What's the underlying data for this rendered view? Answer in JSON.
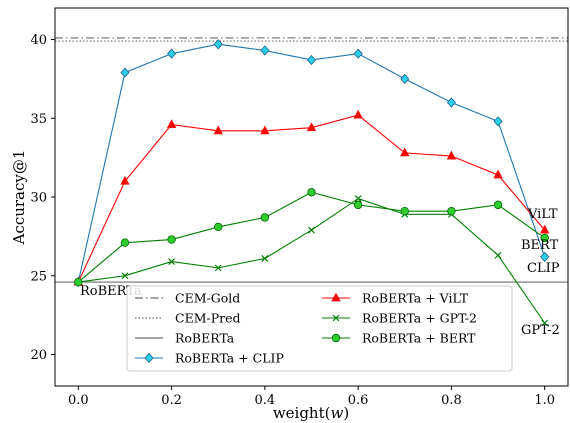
{
  "chart_data": {
    "type": "line",
    "xlabel": "weight(w)",
    "ylabel": "Accuracy@1",
    "xlim": [
      -0.05,
      1.05
    ],
    "ylim": [
      18,
      42
    ],
    "xticks": [
      "0.0",
      "0.2",
      "0.4",
      "0.6",
      "0.8",
      "1.0"
    ],
    "yticks": [
      "20",
      "25",
      "30",
      "35",
      "40"
    ],
    "grid": false,
    "legend_position": "lower-center",
    "x": [
      0.0,
      0.1,
      0.2,
      0.3,
      0.4,
      0.5,
      0.6,
      0.7,
      0.8,
      0.9,
      1.0
    ],
    "reference_lines": [
      {
        "name": "CEM-Gold",
        "value": 40.1,
        "style": "dashdot",
        "color": "#6e6e6e"
      },
      {
        "name": "CEM-Pred",
        "value": 39.9,
        "style": "dotted",
        "color": "#6e6e6e"
      },
      {
        "name": "RoBERTa",
        "value": 24.6,
        "style": "solid",
        "color": "#6e6e6e"
      }
    ],
    "series": [
      {
        "name": "RoBERTa + CLIP",
        "color": "#1f77b4",
        "marker": "diamond",
        "marker_fill": "#2bd0e8",
        "values": [
          24.6,
          37.9,
          39.1,
          39.7,
          39.3,
          38.7,
          39.1,
          37.5,
          36.0,
          34.8,
          26.2
        ]
      },
      {
        "name": "RoBERTa + ViLT",
        "color": "#ff0000",
        "marker": "triangle",
        "marker_fill": "#ff0000",
        "values": [
          24.6,
          31.0,
          34.6,
          34.2,
          34.2,
          34.4,
          35.2,
          32.8,
          32.6,
          31.4,
          27.9
        ]
      },
      {
        "name": "RoBERTa + GPT-2",
        "color": "#008000",
        "marker": "x",
        "marker_fill": "#008000",
        "values": [
          24.6,
          25.0,
          25.9,
          25.5,
          26.1,
          27.9,
          29.9,
          28.9,
          28.9,
          26.3,
          22.0
        ]
      },
      {
        "name": "RoBERTa + BERT",
        "color": "#008000",
        "marker": "circle",
        "marker_fill": "#2ecc2e",
        "values": [
          24.6,
          27.1,
          27.3,
          28.1,
          28.7,
          30.3,
          29.5,
          29.1,
          29.1,
          29.5,
          27.4
        ]
      }
    ],
    "annotations": [
      "RoBERTa",
      "ViLT",
      "BERT",
      "CLIP",
      "GPT-2"
    ]
  }
}
